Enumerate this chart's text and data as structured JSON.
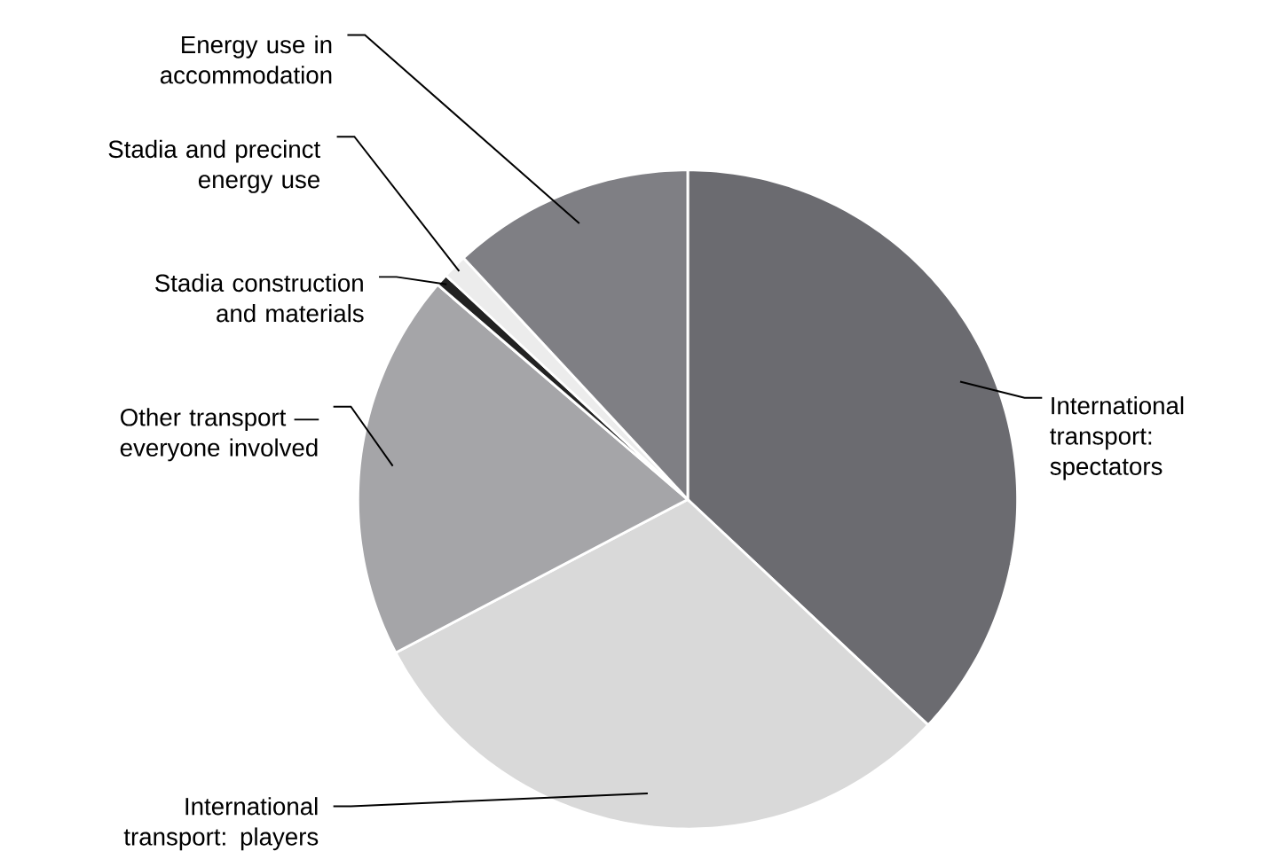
{
  "chart_data": {
    "type": "pie",
    "categories": [
      "International transport: spectators",
      "International transport: players",
      "Other transport — everyone involved",
      "Stadia construction and materials",
      "Stadia and precinct energy use",
      "Energy use in accommodation"
    ],
    "values": [
      37,
      30.3,
      19,
      0.6,
      1.2,
      11.9
    ],
    "colors": [
      "#6b6b70",
      "#d9d9d9",
      "#a5a5a8",
      "#222222",
      "#ececec",
      "#7f7f84"
    ]
  }
}
